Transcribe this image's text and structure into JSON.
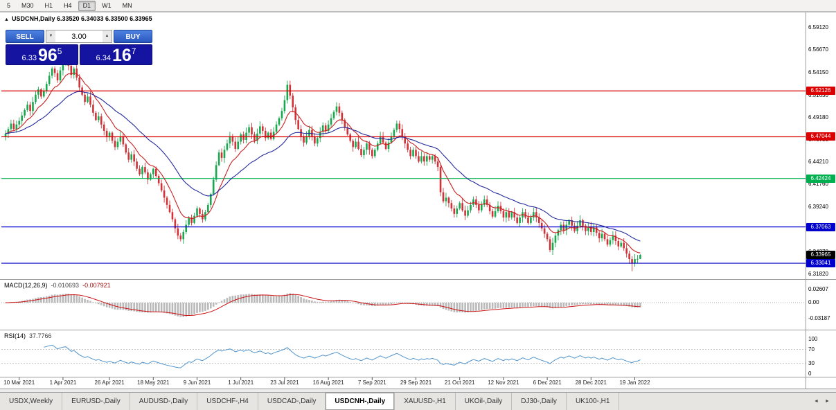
{
  "toolbar": {
    "timeframes": [
      {
        "label": "5"
      },
      {
        "label": "M30"
      },
      {
        "label": "H1"
      },
      {
        "label": "H4"
      },
      {
        "label": "D1",
        "active": true
      },
      {
        "label": "W1"
      },
      {
        "label": "MN"
      }
    ]
  },
  "chart": {
    "collapse_icon": "▲",
    "title": "USDCNH,Daily",
    "ohlc_text": "6.33520 6.34033 6.33500 6.33965"
  },
  "trade_panel": {
    "sell_label": "SELL",
    "buy_label": "BUY",
    "volume": "3.00",
    "vol_down_icon": "▼",
    "vol_up_icon": "▲",
    "sell": {
      "prefix": "6.33",
      "big": "96",
      "sup": "5"
    },
    "buy": {
      "prefix": "6.34",
      "big": "16",
      "sup": "7"
    }
  },
  "tabs": {
    "active_index": 5,
    "scroll_left_icon": "◄",
    "scroll_right_icon": "►",
    "items": [
      {
        "label": "USDX,Weekly"
      },
      {
        "label": "EURUSD-,Daily"
      },
      {
        "label": "AUDUSD-,Daily"
      },
      {
        "label": "USDCHF-,H4"
      },
      {
        "label": "USDCAD-,Daily"
      },
      {
        "label": "USDCNH-,Daily"
      },
      {
        "label": "XAUUSD-,H1"
      },
      {
        "label": "UKOil-,Daily"
      },
      {
        "label": "DJ30-,Daily"
      },
      {
        "label": "UK100-,H1"
      }
    ]
  },
  "chart_data": {
    "type": "candlestick",
    "symbol": "USDCNH",
    "timeframe": "Daily",
    "last_ohlc": {
      "open": 6.3352,
      "high": 6.34033,
      "low": 6.335,
      "close": 6.33965
    },
    "colors": {
      "up": "#18a84e",
      "down": "#cf3338"
    },
    "price_axis": {
      "min": 6.3128,
      "max": 6.6081,
      "ticks": [
        "6.59120",
        "6.56670",
        "6.54150",
        "6.51630",
        "6.49180",
        "6.46730",
        "6.44210",
        "6.41760",
        "6.39240",
        "6.36790",
        "6.34270",
        "6.31820"
      ]
    },
    "hlines": [
      {
        "price": 6.52126,
        "label": "6.52126",
        "color": "#dc0000"
      },
      {
        "price": 6.47044,
        "label": "6.47044",
        "color": "#dc0000"
      },
      {
        "price": 6.42424,
        "label": "6.42424",
        "color": "#00b050"
      },
      {
        "price": 6.37063,
        "label": "6.37063",
        "color": "#0000cc"
      },
      {
        "price": 6.33041,
        "label": "6.33041",
        "color": "#0000cc"
      }
    ],
    "last_price": {
      "value": 6.33965,
      "label": "6.33965",
      "bg": "#000000"
    },
    "ma": [
      {
        "period": 10,
        "color": "#c81e1e"
      },
      {
        "period": 30,
        "color": "#232a9b"
      }
    ],
    "macd": {
      "name": "MACD(12,26,9)",
      "value_main": "-0.010693",
      "value_signal": "-0.007921",
      "params": [
        12,
        26,
        9
      ],
      "axis_ticks": [
        "0.02607",
        "0.00",
        "-0.03187"
      ],
      "range": {
        "min": -0.0535,
        "max": 0.0453
      }
    },
    "rsi": {
      "name": "RSI(14)",
      "value": "37.7766",
      "period": 14,
      "axis_ticks": [
        "100",
        "70",
        "30",
        "0"
      ],
      "levels": [
        70,
        30
      ]
    },
    "date_ticks": [
      {
        "i": 5,
        "label": "10 Mar 2021"
      },
      {
        "i": 21,
        "label": "1 Apr 2021"
      },
      {
        "i": 38,
        "label": "26 Apr 2021"
      },
      {
        "i": 54,
        "label": "18 May 2021"
      },
      {
        "i": 70,
        "label": "9 Jun 2021"
      },
      {
        "i": 86,
        "label": "1 Jul 2021"
      },
      {
        "i": 102,
        "label": "23 Jul 2021"
      },
      {
        "i": 118,
        "label": "16 Aug 2021"
      },
      {
        "i": 134,
        "label": "7 Sep 2021"
      },
      {
        "i": 150,
        "label": "29 Sep 2021"
      },
      {
        "i": 166,
        "label": "21 Oct 2021"
      },
      {
        "i": 182,
        "label": "12 Nov 2021"
      },
      {
        "i": 198,
        "label": "6 Dec 2021"
      },
      {
        "i": 214,
        "label": "28 Dec 2021"
      },
      {
        "i": 230,
        "label": "19 Jan 2022"
      }
    ],
    "spikes": [
      {
        "i": 22,
        "high": 6.566
      },
      {
        "i": 64,
        "low": 6.3545
      },
      {
        "i": 103,
        "high": 6.5325
      },
      {
        "i": 199,
        "low": 6.3425
      },
      {
        "i": 229,
        "low": 6.3215
      }
    ],
    "closes": [
      6.474,
      6.479,
      6.485,
      6.479,
      6.484,
      6.488,
      6.494,
      6.5,
      6.506,
      6.499,
      6.509,
      6.517,
      6.523,
      6.515,
      6.521,
      6.529,
      6.538,
      6.546,
      6.541,
      6.533,
      6.544,
      6.553,
      6.557,
      6.549,
      6.539,
      6.546,
      6.536,
      6.525,
      6.517,
      6.509,
      6.515,
      6.506,
      6.497,
      6.489,
      6.493,
      6.484,
      6.477,
      6.47,
      6.475,
      6.466,
      6.459,
      6.465,
      6.471,
      6.462,
      6.453,
      6.445,
      6.451,
      6.443,
      6.435,
      6.429,
      6.437,
      6.431,
      6.423,
      6.429,
      6.435,
      6.427,
      6.419,
      6.411,
      6.403,
      6.395,
      6.387,
      6.379,
      6.369,
      6.361,
      6.357,
      6.365,
      6.373,
      6.381,
      6.375,
      6.383,
      6.391,
      6.385,
      6.379,
      6.387,
      6.395,
      6.407,
      6.423,
      6.439,
      6.453,
      6.447,
      6.456,
      6.463,
      6.471,
      6.465,
      6.457,
      6.465,
      6.473,
      6.467,
      6.475,
      6.481,
      6.473,
      6.466,
      6.474,
      6.482,
      6.477,
      6.469,
      6.475,
      6.468,
      6.476,
      6.484,
      6.491,
      6.499,
      6.511,
      6.528,
      6.516,
      6.503,
      6.489,
      6.479,
      6.471,
      6.464,
      6.471,
      6.478,
      6.471,
      6.463,
      6.469,
      6.476,
      6.483,
      6.477,
      6.484,
      6.491,
      6.498,
      6.504,
      6.497,
      6.489,
      6.481,
      6.473,
      6.466,
      6.459,
      6.465,
      6.457,
      6.45,
      6.456,
      6.463,
      6.456,
      6.449,
      6.456,
      6.463,
      6.471,
      6.464,
      6.457,
      6.464,
      6.471,
      6.478,
      6.485,
      6.479,
      6.471,
      6.463,
      6.456,
      6.449,
      6.456,
      6.449,
      6.443,
      6.449,
      6.443,
      6.449,
      6.445,
      6.449,
      6.443,
      6.437,
      6.409,
      6.399,
      6.403,
      6.397,
      6.391,
      6.385,
      6.391,
      6.397,
      6.389,
      6.383,
      6.389,
      6.395,
      6.401,
      6.395,
      6.389,
      6.395,
      6.401,
      6.395,
      6.388,
      6.382,
      6.388,
      6.394,
      6.388,
      6.381,
      6.387,
      6.381,
      6.387,
      6.381,
      6.375,
      6.381,
      6.387,
      6.381,
      6.375,
      6.381,
      6.387,
      6.381,
      6.375,
      6.369,
      6.363,
      6.357,
      6.345,
      6.353,
      6.361,
      6.367,
      6.373,
      6.367,
      6.373,
      6.378,
      6.372,
      6.366,
      6.372,
      6.378,
      6.372,
      6.366,
      6.371,
      6.365,
      6.37,
      6.364,
      6.358,
      6.363,
      6.357,
      6.351,
      6.356,
      6.361,
      6.355,
      6.349,
      6.353,
      6.347,
      6.341,
      6.335,
      6.33,
      6.335,
      6.3352,
      6.33965
    ]
  }
}
